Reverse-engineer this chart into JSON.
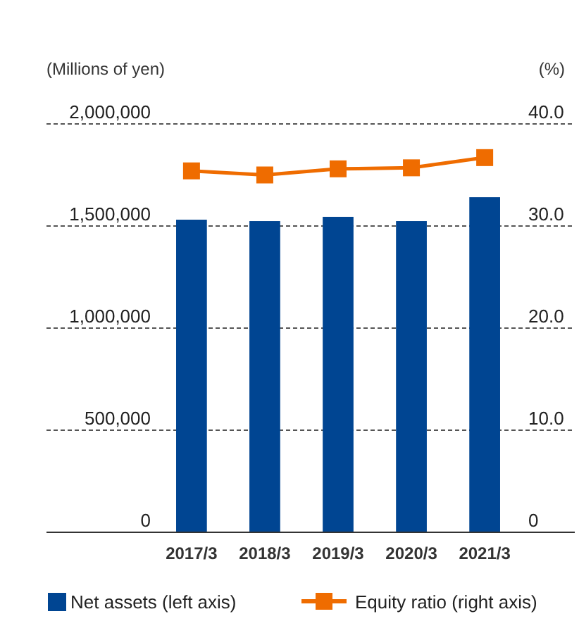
{
  "chart_data": {
    "type": "bar",
    "ylabel": "(Millions of yen)",
    "y2label": "(%)",
    "categories": [
      "2017/3",
      "2018/3",
      "2019/3",
      "2020/3",
      "2021/3"
    ],
    "series": [
      {
        "name": "Net assets (left axis)",
        "color": "#004592",
        "values": [
          1531000,
          1524000,
          1545000,
          1524000,
          1641000
        ]
      },
      {
        "name": "Equity ratio (right axis)",
        "type": "line",
        "axis": "y2",
        "color": "#ef6c00",
        "marker": "square",
        "values": [
          35.4,
          35.0,
          35.6,
          35.7,
          36.7
        ]
      }
    ],
    "ylim": [
      0,
      2000000
    ],
    "yticks": [
      {
        "value": 0,
        "label": "0"
      },
      {
        "value": 500000,
        "label": "500,000"
      },
      {
        "value": 1000000,
        "label": "1,000,000"
      },
      {
        "value": 1500000,
        "label": "1,500,000"
      },
      {
        "value": 2000000,
        "label": "2,000,000"
      }
    ],
    "y2lim": [
      0,
      40
    ],
    "y2ticks": [
      {
        "value": 0,
        "label": "0"
      },
      {
        "value": 10,
        "label": "10.0"
      },
      {
        "value": 20,
        "label": "20.0"
      },
      {
        "value": 30,
        "label": "30.0"
      },
      {
        "value": 40,
        "label": "40.0"
      }
    ],
    "grid": "y",
    "legend": "bottom"
  }
}
